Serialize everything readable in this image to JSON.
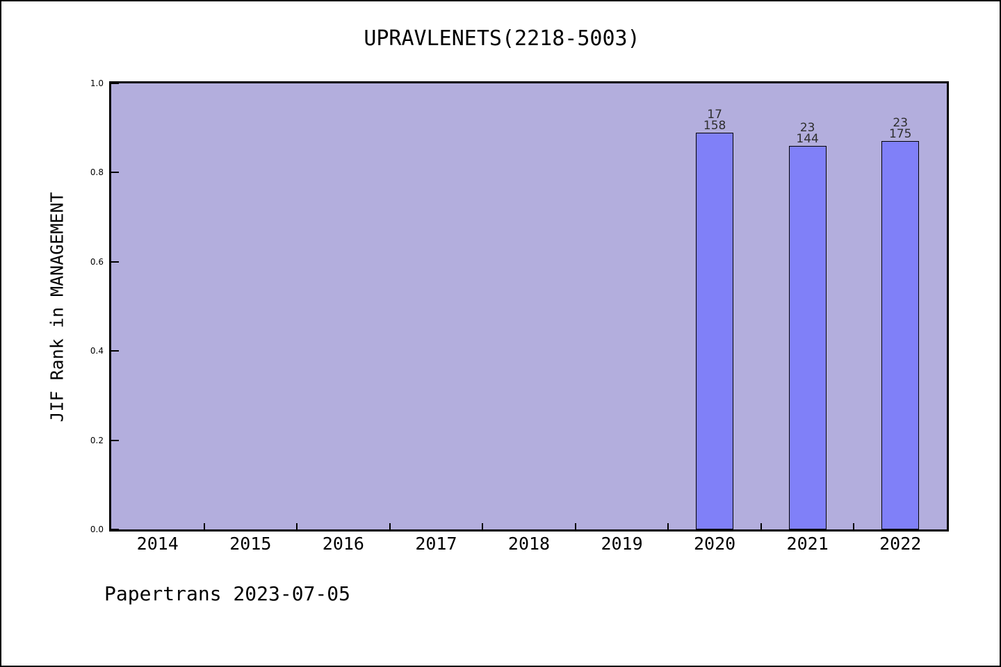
{
  "chart_data": {
    "type": "bar",
    "title": "UPRAVLENETS(2218-5003)",
    "ylabel": "JIF Rank in MANAGEMENT",
    "xlabel": "",
    "categories": [
      "2014",
      "2015",
      "2016",
      "2017",
      "2018",
      "2019",
      "2020",
      "2021",
      "2022"
    ],
    "series": [
      {
        "name": "JIF Rank percentile",
        "values": [
          null,
          null,
          null,
          null,
          null,
          null,
          0.89,
          0.86,
          0.87
        ]
      }
    ],
    "annotations": [
      {
        "category": "2020",
        "lines": [
          "17",
          "158"
        ]
      },
      {
        "category": "2021",
        "lines": [
          "23",
          "144"
        ]
      },
      {
        "category": "2022",
        "lines": [
          "23",
          "175"
        ]
      }
    ],
    "ylim": [
      0.0,
      1.0
    ],
    "yticks": [
      "0.0",
      "0.2",
      "0.4",
      "0.6",
      "0.8",
      "1.0"
    ],
    "grid": false,
    "legend": null,
    "colors": {
      "bar_fill": "#8080f8",
      "bar_border": "#000000",
      "plot_background": "#b3aedd",
      "figure_background": "#ffffff",
      "axis_color": "#000000",
      "annotation_text": "#2e2e2e"
    }
  },
  "footer": {
    "text": "Papertrans 2023-07-05"
  }
}
